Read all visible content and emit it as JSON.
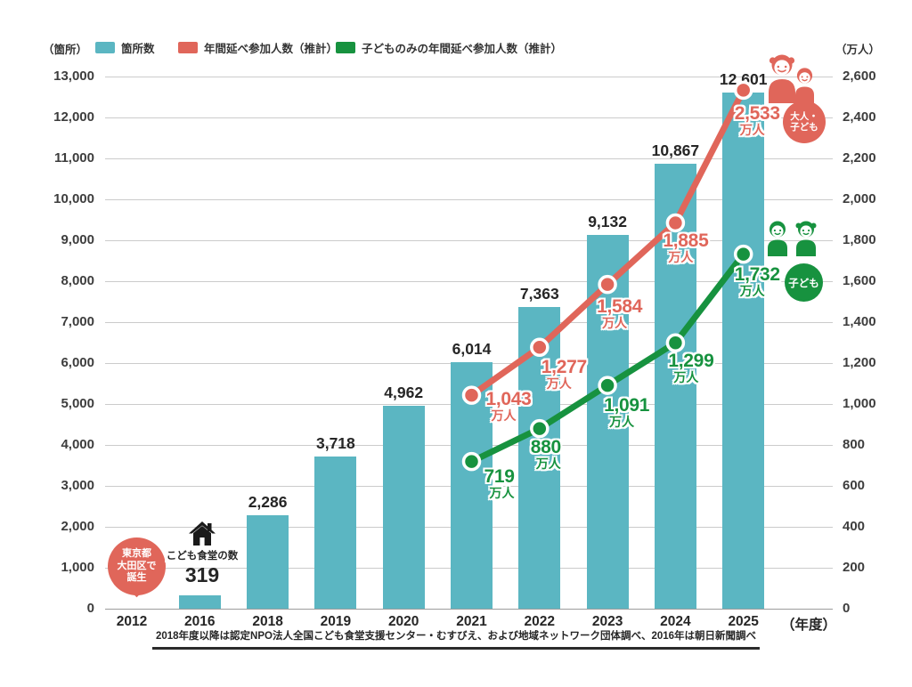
{
  "legend": {
    "left_unit": "（箇所）",
    "right_unit": "（万人）",
    "items": [
      {
        "label": "箇所数"
      },
      {
        "label": "年間延べ参加人数（推計）"
      },
      {
        "label": "子どものみの年間延べ参加人数（推計）"
      }
    ]
  },
  "colors": {
    "bar": "#5bb6c2",
    "adults_line": "#e0665a",
    "children_line": "#17923f",
    "grid": "#cbcbcb"
  },
  "chart_data": {
    "type": "bar",
    "combo": "bar+line",
    "title": "",
    "categories": [
      "2012",
      "2016",
      "2018",
      "2019",
      "2020",
      "2021",
      "2022",
      "2023",
      "2024",
      "2025"
    ],
    "x_axis_unit": "（年度）",
    "left_axis": {
      "label": "箇所",
      "min": 0,
      "max": 13000,
      "step": 1000
    },
    "right_axis": {
      "label": "万人",
      "min": 0,
      "max": 2600,
      "step": 200
    },
    "grid": "on",
    "legend_position": "top",
    "bars": {
      "name": "箇所数",
      "axis": "left",
      "values": [
        null,
        319,
        2286,
        3718,
        4962,
        6014,
        7363,
        9132,
        10867,
        12601
      ],
      "labels": [
        "",
        "",
        "2,286",
        "3,718",
        "4,962",
        "6,014",
        "7,363",
        "9,132",
        "10,867",
        "12,601"
      ]
    },
    "series": [
      {
        "name": "年間延べ参加人数（推計）",
        "type": "line",
        "axis": "right",
        "unit": "万人",
        "color_key": "adults_line",
        "points": [
          {
            "category": "2021",
            "value": 1043,
            "label": "1,043"
          },
          {
            "category": "2022",
            "value": 1277,
            "label": "1,277"
          },
          {
            "category": "2023",
            "value": 1584,
            "label": "1,584"
          },
          {
            "category": "2024",
            "value": 1885,
            "label": "1,885"
          },
          {
            "category": "2025",
            "value": 2533,
            "label": "2,533"
          }
        ]
      },
      {
        "name": "子どものみの年間延べ参加人数（推計）",
        "type": "line",
        "axis": "right",
        "unit": "万人",
        "color_key": "children_line",
        "points": [
          {
            "category": "2021",
            "value": 719,
            "label": "719"
          },
          {
            "category": "2022",
            "value": 880,
            "label": "880"
          },
          {
            "category": "2023",
            "value": 1091,
            "label": "1,091"
          },
          {
            "category": "2024",
            "value": 1299,
            "label": "1,299"
          },
          {
            "category": "2025",
            "value": 1732,
            "label": "1,732"
          }
        ]
      }
    ]
  },
  "annotations": {
    "origin_balloon": {
      "lines": [
        "東京都",
        "大田区で",
        "誕生"
      ]
    },
    "house_note": {
      "title": "こども食堂の数",
      "value": "319"
    },
    "adults_badge": {
      "lines": [
        "大人・",
        "子ども"
      ]
    },
    "children_badge": {
      "label": "子ども"
    }
  },
  "footnote": "2018年度以降は認定NPO法人全国こども食堂支援センター・むすびえ、および地域ネットワーク団体調べ、2016年は朝日新聞調べ"
}
